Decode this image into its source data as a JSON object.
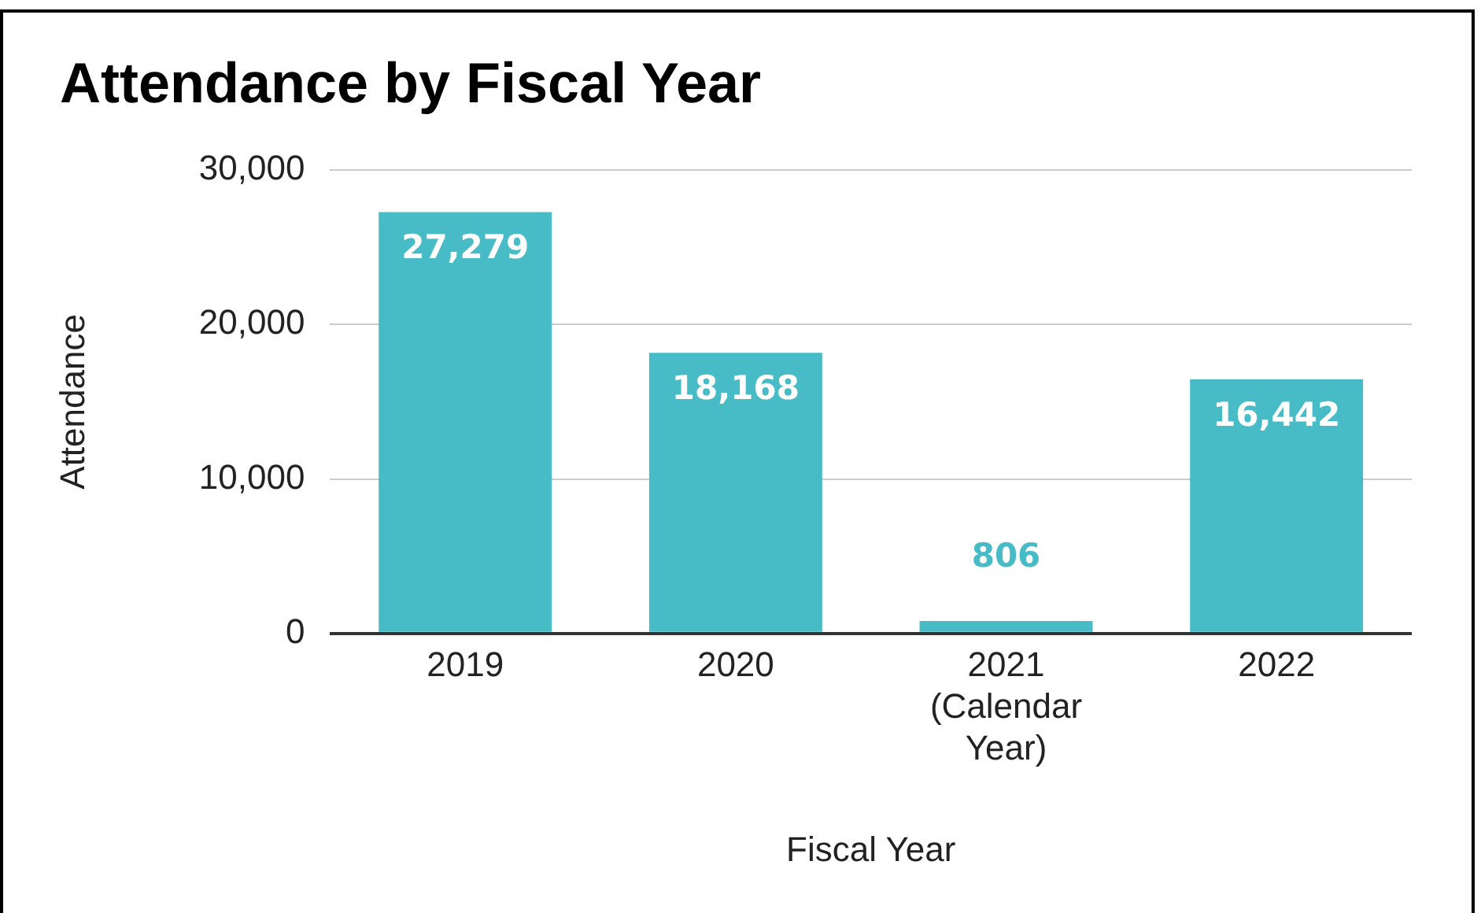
{
  "chart_data": {
    "type": "bar",
    "title": "Attendance by Fiscal Year",
    "xlabel": "Fiscal Year",
    "ylabel": "Attendance",
    "categories": [
      "2019",
      "2020",
      "2021 (Calendar Year)",
      "2022"
    ],
    "values": [
      27279,
      18168,
      806,
      16442
    ],
    "color": "#47bcc6",
    "value_labels": [
      "27,279",
      "18,168",
      "806",
      "16,442"
    ],
    "ylim": [
      0,
      30000
    ],
    "yticks": [
      {
        "value": 0,
        "label": "0"
      },
      {
        "value": 10000,
        "label": "10,000"
      },
      {
        "value": 20000,
        "label": "20,000"
      },
      {
        "value": 30000,
        "label": "30,000"
      }
    ],
    "grid": "y",
    "legend": false
  }
}
